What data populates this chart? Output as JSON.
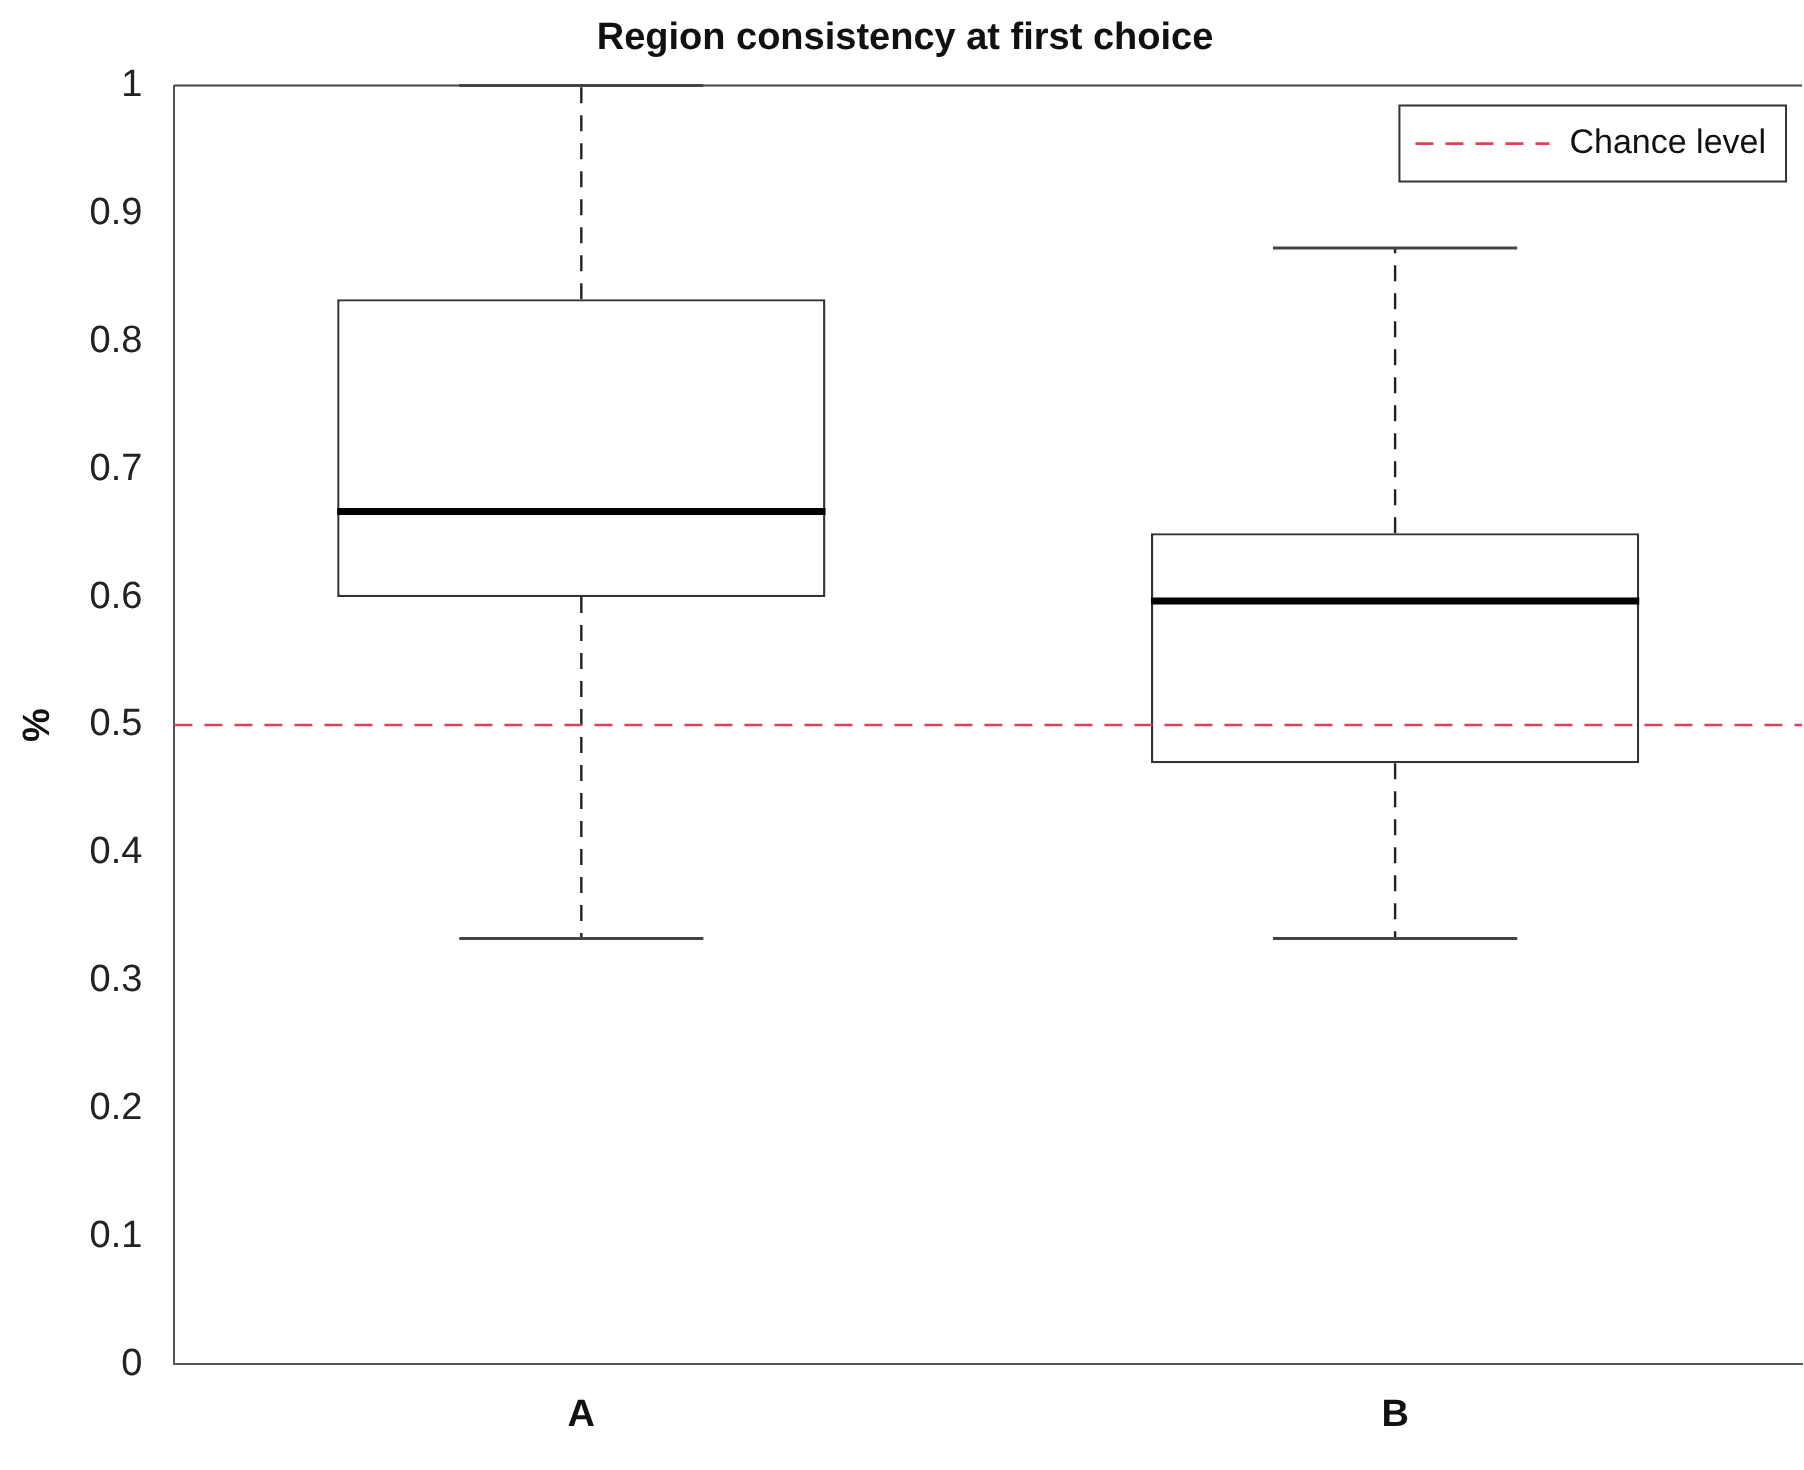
{
  "chart_data": {
    "type": "box",
    "title": "Region consistency at first choice",
    "ylabel": "%",
    "categories": [
      "A",
      "B"
    ],
    "boxes": [
      {
        "low": 0.333,
        "q1": 0.6,
        "median": 0.667,
        "q3": 0.833,
        "high": 1
      },
      {
        "low": 0.333,
        "q1": 0.47,
        "median": 0.597,
        "q3": 0.65,
        "high": 0.873
      }
    ],
    "ylim": [
      0,
      1
    ],
    "yticks": [
      0,
      0.1,
      0.2,
      0.3,
      0.4,
      0.5,
      0.6,
      0.7,
      0.8,
      0.9,
      1
    ],
    "ref_lines": [
      {
        "axis": "y",
        "value": 0.5,
        "label": "Chance level",
        "color": "#e0405a",
        "line_style": "dashed"
      }
    ],
    "legend": "top right",
    "grid": false
  }
}
